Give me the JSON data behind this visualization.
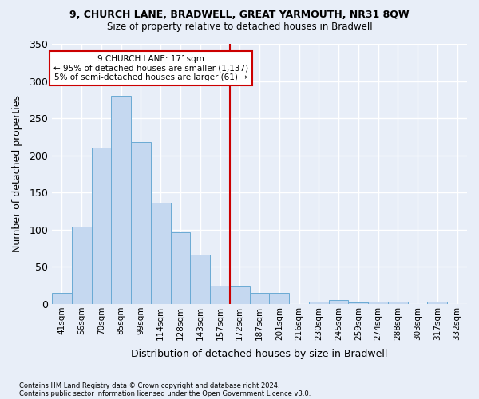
{
  "title1": "9, CHURCH LANE, BRADWELL, GREAT YARMOUTH, NR31 8QW",
  "title2": "Size of property relative to detached houses in Bradwell",
  "xlabel": "Distribution of detached houses by size in Bradwell",
  "ylabel": "Number of detached properties",
  "bar_labels": [
    "41sqm",
    "56sqm",
    "70sqm",
    "85sqm",
    "99sqm",
    "114sqm",
    "128sqm",
    "143sqm",
    "157sqm",
    "172sqm",
    "187sqm",
    "201sqm",
    "216sqm",
    "230sqm",
    "245sqm",
    "259sqm",
    "274sqm",
    "288sqm",
    "303sqm",
    "317sqm",
    "332sqm"
  ],
  "bar_values": [
    15,
    104,
    210,
    280,
    218,
    136,
    97,
    67,
    25,
    24,
    15,
    15,
    0,
    3,
    5,
    2,
    3,
    3,
    0,
    3,
    0
  ],
  "bar_color": "#c5d8f0",
  "bar_edge_color": "#6aaad4",
  "annotation_line1": "9 CHURCH LANE: 171sqm",
  "annotation_line2": "← 95% of detached houses are smaller (1,137)",
  "annotation_line3": "5% of semi-detached houses are larger (61) →",
  "annotation_box_color": "#ffffff",
  "annotation_border_color": "#cc0000",
  "vline_color": "#cc0000",
  "background_color": "#e8eef8",
  "grid_color": "#ffffff",
  "footer1": "Contains HM Land Registry data © Crown copyright and database right 2024.",
  "footer2": "Contains public sector information licensed under the Open Government Licence v3.0.",
  "ylim": [
    0,
    350
  ],
  "yticks": [
    0,
    50,
    100,
    150,
    200,
    250,
    300,
    350
  ],
  "vline_bar_index": 9
}
